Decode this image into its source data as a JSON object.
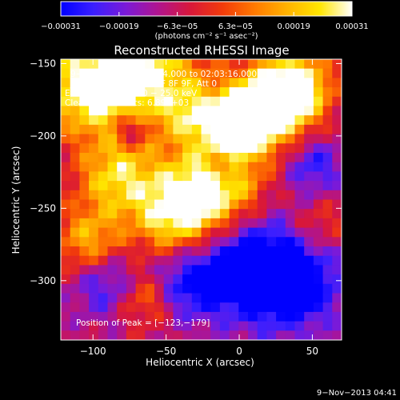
{
  "chart_data": {
    "type": "heatmap",
    "title": "Reconstructed RHESSI Image",
    "xlabel": "Heliocentric X (arcsec)",
    "ylabel": "Heliocentric Y (arcsec)",
    "xlim": [
      -122,
      70
    ],
    "ylim": [
      -341,
      -147
    ],
    "x_ticks": [
      -100,
      -50,
      0,
      50
    ],
    "x_tick_labels": [
      "−100",
      "−50",
      "0",
      "50"
    ],
    "y_ticks": [
      -150,
      -200,
      -250,
      -300
    ],
    "y_tick_labels": [
      "−150",
      "−200",
      "−250",
      "−300"
    ],
    "colorbar": {
      "colormap": [
        "#0000ff",
        "#3a1fff",
        "#7a1ad8",
        "#b0148f",
        "#d8173a",
        "#f23b0a",
        "#ff7a00",
        "#ffb300",
        "#ffe600",
        "#ffffff"
      ],
      "range": [
        -0.00031,
        0.00031
      ],
      "tick_labels": [
        "−0.00031",
        "−0.00019",
        "−6.3e−05",
        "6.3e−05",
        "0.00019",
        "0.00031"
      ],
      "unit_label": "(photons cm⁻² s⁻¹ asec⁻²)"
    },
    "annotations": {
      "time_range": "9−Nov−2013 01:59:04.000 to 02:03:16.000",
      "detectors": "Detectors: 3F 5F 6F 7F 8F 9F, Att 0",
      "energy_range": "Energy Range: 12.0 − 25.0 keV",
      "counts": "Clean    Total counts: 6.89E+03",
      "peak": "Position of Peak = [−123,−179]"
    },
    "timestamp": "9−Nov−2013 04:41"
  },
  "colors": {
    "background": "#000000",
    "text": "#ffffff"
  }
}
